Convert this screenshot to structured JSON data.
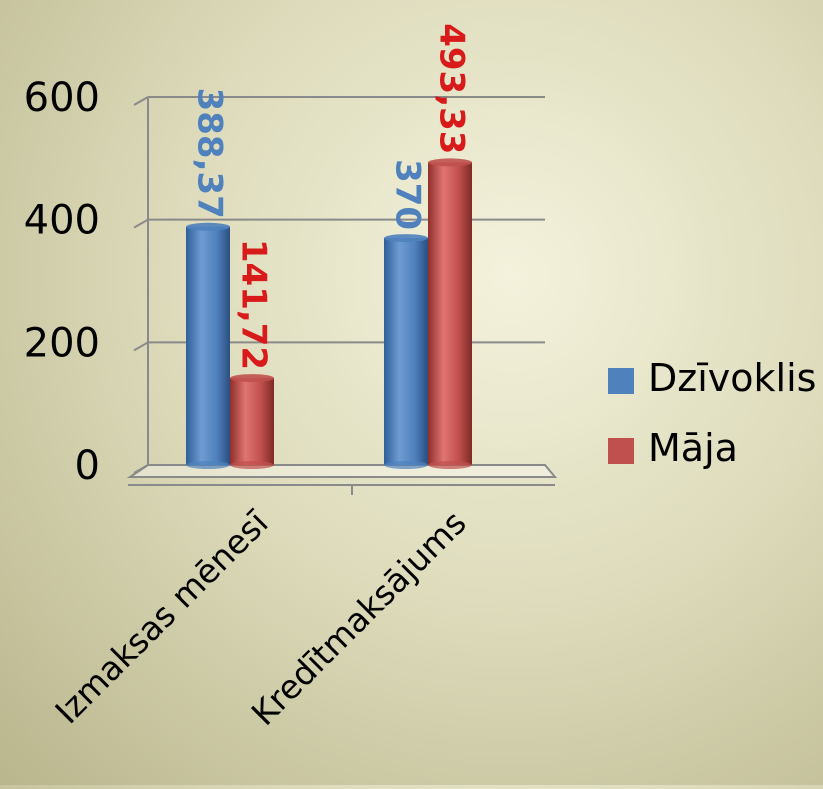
{
  "chart_data": {
    "type": "bar",
    "categories": [
      "Izmaksas mēnesī",
      "Kredītmaksājums"
    ],
    "series": [
      {
        "name": "Dzīvoklis",
        "values": [
          388.37,
          370
        ],
        "labels": [
          "388,37",
          "370"
        ],
        "color": "#4f81bd",
        "label_color": "#4f81bd"
      },
      {
        "name": "Māja",
        "values": [
          141.72,
          493.33
        ],
        "labels": [
          "141,72",
          "493,33"
        ],
        "color": "#c0504d",
        "label_color": "#d81a1a"
      }
    ],
    "yticks": [
      "0",
      "200",
      "400",
      "600"
    ],
    "ylim": [
      0,
      600
    ],
    "grid": true,
    "legend_position": "right",
    "style": "3d-cylinder"
  }
}
